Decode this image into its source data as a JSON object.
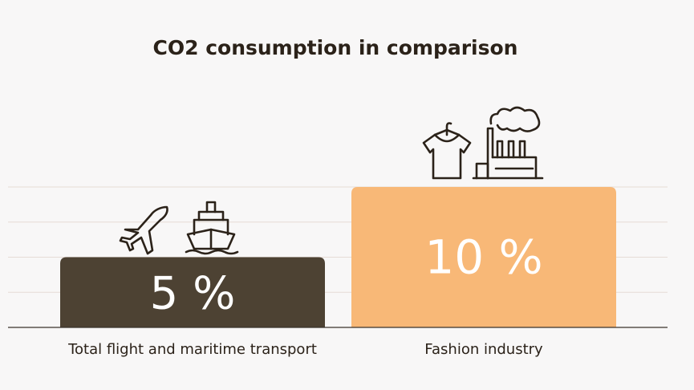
{
  "chart_data": {
    "type": "bar",
    "title": "CO2 consumption in comparison",
    "categories": [
      "Total flight and maritime transport",
      "Fashion industry"
    ],
    "values": [
      5,
      10
    ],
    "value_labels": [
      "5 %",
      "10 %"
    ],
    "unit": "%",
    "ylim": [
      0,
      10
    ],
    "grid": true,
    "legend": "none",
    "colors": [
      "#4d4233",
      "#f8b877"
    ],
    "bar_label_colors": [
      "#ffffff",
      "#ffffff"
    ],
    "icons": [
      [
        "airplane-icon",
        "ship-icon"
      ],
      [
        "t-shirt-icon",
        "factory-icon"
      ]
    ]
  },
  "colors": {
    "background": "#f8f7f7",
    "gridline": "#e6dcd6",
    "axis": "#3a332b",
    "title": "#2b2219",
    "label": "#2b2219",
    "icon": "#2b2219"
  }
}
